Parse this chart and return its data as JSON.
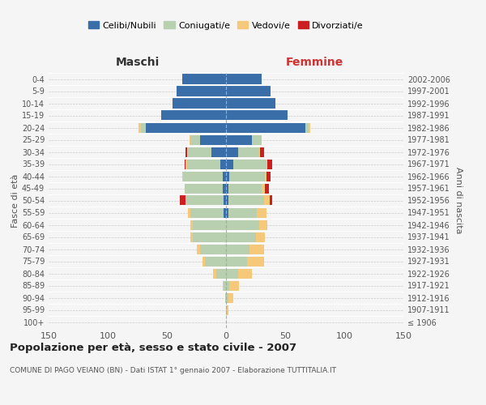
{
  "age_groups": [
    "100+",
    "95-99",
    "90-94",
    "85-89",
    "80-84",
    "75-79",
    "70-74",
    "65-69",
    "60-64",
    "55-59",
    "50-54",
    "45-49",
    "40-44",
    "35-39",
    "30-34",
    "25-29",
    "20-24",
    "15-19",
    "10-14",
    "5-9",
    "0-4"
  ],
  "birth_years": [
    "≤ 1906",
    "1907-1911",
    "1912-1916",
    "1917-1921",
    "1922-1926",
    "1927-1931",
    "1932-1936",
    "1937-1941",
    "1942-1946",
    "1947-1951",
    "1952-1956",
    "1957-1961",
    "1962-1966",
    "1967-1971",
    "1972-1976",
    "1977-1981",
    "1982-1986",
    "1987-1991",
    "1992-1996",
    "1997-2001",
    "2002-2006"
  ],
  "maschi": {
    "celibi": [
      0,
      0,
      0,
      0,
      0,
      0,
      0,
      0,
      0,
      2,
      2,
      3,
      3,
      5,
      12,
      22,
      68,
      55,
      45,
      42,
      37
    ],
    "coniugati": [
      0,
      0,
      1,
      2,
      8,
      18,
      22,
      28,
      28,
      28,
      32,
      32,
      33,
      28,
      20,
      8,
      4,
      0,
      0,
      0,
      0
    ],
    "vedovi": [
      0,
      0,
      0,
      1,
      3,
      2,
      3,
      2,
      2,
      2,
      0,
      0,
      1,
      1,
      1,
      1,
      2,
      0,
      0,
      0,
      0
    ],
    "divorziati": [
      0,
      0,
      0,
      0,
      0,
      0,
      0,
      0,
      0,
      0,
      5,
      0,
      0,
      1,
      1,
      0,
      0,
      0,
      0,
      0,
      0
    ]
  },
  "femmine": {
    "nubili": [
      0,
      0,
      0,
      0,
      0,
      0,
      0,
      0,
      0,
      2,
      2,
      2,
      3,
      6,
      10,
      22,
      67,
      52,
      42,
      38,
      30
    ],
    "coniugate": [
      0,
      1,
      2,
      3,
      10,
      18,
      20,
      25,
      28,
      24,
      30,
      28,
      30,
      28,
      18,
      8,
      3,
      0,
      0,
      0,
      0
    ],
    "vedove": [
      0,
      1,
      4,
      8,
      12,
      14,
      12,
      8,
      7,
      8,
      5,
      3,
      1,
      1,
      1,
      0,
      1,
      0,
      0,
      0,
      0
    ],
    "divorziate": [
      0,
      0,
      0,
      0,
      0,
      0,
      0,
      0,
      0,
      0,
      2,
      3,
      4,
      4,
      3,
      0,
      0,
      0,
      0,
      0,
      0
    ]
  },
  "colors": {
    "celibi_nubili": "#3a6ea8",
    "coniugati": "#b8cfb0",
    "vedovi": "#f5c87a",
    "divorziati": "#cc2020"
  },
  "xlim": 150,
  "title": "Popolazione per età, sesso e stato civile - 2007",
  "subtitle": "COMUNE DI PAGO VEIANO (BN) - Dati ISTAT 1° gennaio 2007 - Elaborazione TUTTITALIA.IT",
  "xlabel_left": "Maschi",
  "xlabel_right": "Femmine",
  "ylabel_left": "Fasce di età",
  "ylabel_right": "Anni di nascita",
  "legend_labels": [
    "Celibi/Nubili",
    "Coniugati/e",
    "Vedovi/e",
    "Divorziati/e"
  ],
  "background_color": "#f5f5f5"
}
